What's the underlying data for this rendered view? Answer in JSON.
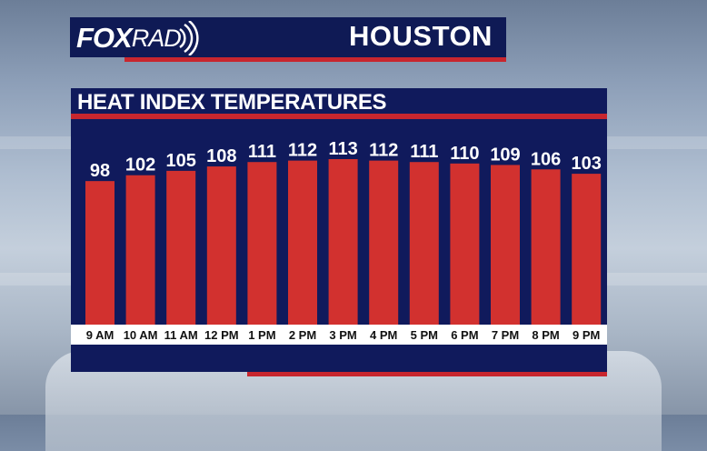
{
  "brand": {
    "fox": "FOX",
    "rad": "RAD"
  },
  "header": {
    "city": "HOUSTON"
  },
  "colors": {
    "navy": "#101a5c",
    "bar_red": "#d2312f",
    "accent_red": "#c8262e"
  },
  "chart_data": {
    "type": "bar",
    "title": "HEAT INDEX TEMPERATURES",
    "categories": [
      "9 AM",
      "10 AM",
      "11 AM",
      "12 PM",
      "1 PM",
      "2 PM",
      "3 PM",
      "4 PM",
      "5 PM",
      "6 PM",
      "7 PM",
      "8 PM",
      "9 PM"
    ],
    "values": [
      98,
      102,
      105,
      108,
      111,
      112,
      113,
      112,
      111,
      110,
      109,
      106,
      103
    ],
    "data_labels": [
      "98",
      "102",
      "105",
      "108",
      "111",
      "112",
      "113",
      "112",
      "111",
      "110",
      "109",
      "106",
      "103"
    ],
    "ylim": [
      0,
      113
    ],
    "grid": false
  }
}
